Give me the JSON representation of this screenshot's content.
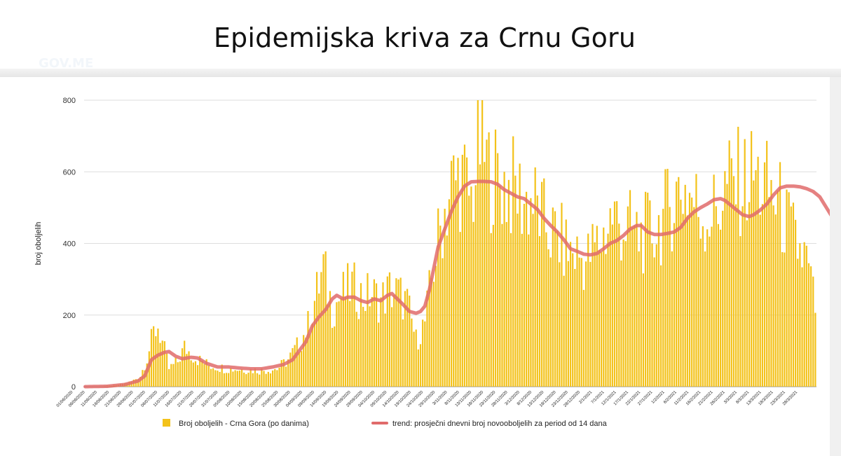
{
  "slide": {
    "title": "Epidemijska kriva za Crnu Goru",
    "watermark": "GOV.ME"
  },
  "colors": {
    "bar": "#f3c21a",
    "trend": "#e06b6b",
    "grid": "#dddddd",
    "axis": "#888888",
    "text": "#333333"
  },
  "chart_data": {
    "type": "bar",
    "title": "",
    "ylabel": "broj oboljelih",
    "xlabel": "",
    "ylim": [
      0,
      800
    ],
    "yticks": [
      0,
      200,
      400,
      600,
      800
    ],
    "grid": true,
    "legend_position": "bottom",
    "x_tick_labels": [
      "01/06/2020",
      "06/06/2020",
      "11/06/2020",
      "16/06/2020",
      "21/06/2020",
      "26/06/2020",
      "01/07/2020",
      "06/07/2020",
      "11/07/2020",
      "16/07/2020",
      "21/07/2020",
      "26/07/2020",
      "31/07/2020",
      "05/08/2020",
      "10/08/2020",
      "15/08/2020",
      "20/08/2020",
      "25/08/2020",
      "30/08/2020",
      "04/09/2020",
      "09/09/2020",
      "14/09/2020",
      "19/09/2020",
      "24/09/2020",
      "29/09/2020",
      "04/10/2020",
      "09/10/2020",
      "14/10/2020",
      "19/10/2020",
      "24/10/2020",
      "29/10/2020",
      "3/11/2020",
      "8/11/2020",
      "13/11/2020",
      "18/11/2020",
      "23/11/2020",
      "28/11/2020",
      "3/12/2020",
      "8/12/2020",
      "13/12/2020",
      "18/12/2020",
      "23/12/2020",
      "28/12/2020",
      "2/1/2021",
      "7/1/2021",
      "12/1/2021",
      "17/1/2021",
      "22/1/2021",
      "27/1/2021",
      "1/2/2021",
      "6/2/2021",
      "11/2/2021",
      "16/2/2021",
      "21/2/2021",
      "26/2/2021",
      "3/3/2021",
      "8/3/2021",
      "13/3/2021",
      "18/3/2021",
      "23/3/2021",
      "28/3/2021"
    ],
    "bar_anchors": [
      [
        0,
        0
      ],
      [
        7,
        1
      ],
      [
        14,
        4
      ],
      [
        21,
        14
      ],
      [
        25,
        30
      ],
      [
        28,
        80
      ],
      [
        31,
        150
      ],
      [
        33,
        170
      ],
      [
        36,
        100
      ],
      [
        38,
        50
      ],
      [
        42,
        70
      ],
      [
        45,
        110
      ],
      [
        50,
        80
      ],
      [
        56,
        60
      ],
      [
        64,
        50
      ],
      [
        72,
        48
      ],
      [
        80,
        45
      ],
      [
        87,
        50
      ],
      [
        92,
        75
      ],
      [
        97,
        120
      ],
      [
        101,
        170
      ],
      [
        104,
        240
      ],
      [
        108,
        330
      ],
      [
        112,
        220
      ],
      [
        117,
        260
      ],
      [
        121,
        280
      ],
      [
        126,
        250
      ],
      [
        130,
        260
      ],
      [
        134,
        240
      ],
      [
        138,
        270
      ],
      [
        142,
        260
      ],
      [
        146,
        230
      ],
      [
        150,
        130
      ],
      [
        154,
        180
      ],
      [
        158,
        340
      ],
      [
        162,
        470
      ],
      [
        166,
        560
      ],
      [
        170,
        590
      ],
      [
        175,
        520
      ],
      [
        179,
        680
      ],
      [
        183,
        600
      ],
      [
        187,
        580
      ],
      [
        191,
        560
      ],
      [
        195,
        550
      ],
      [
        199,
        520
      ],
      [
        203,
        520
      ],
      [
        207,
        470
      ],
      [
        211,
        430
      ],
      [
        215,
        410
      ],
      [
        219,
        380
      ],
      [
        223,
        370
      ],
      [
        227,
        350
      ],
      [
        231,
        390
      ],
      [
        235,
        420
      ],
      [
        239,
        480
      ],
      [
        243,
        450
      ],
      [
        247,
        440
      ],
      [
        251,
        420
      ],
      [
        255,
        430
      ],
      [
        259,
        440
      ],
      [
        263,
        480
      ],
      [
        267,
        530
      ],
      [
        271,
        560
      ],
      [
        275,
        530
      ],
      [
        279,
        480
      ],
      [
        283,
        480
      ],
      [
        287,
        500
      ],
      [
        291,
        560
      ],
      [
        295,
        570
      ],
      [
        299,
        570
      ],
      [
        303,
        590
      ],
      [
        307,
        560
      ],
      [
        311,
        540
      ],
      [
        315,
        500
      ],
      [
        319,
        440
      ],
      [
        323,
        390
      ],
      [
        327,
        350
      ],
      [
        331,
        220
      ]
    ],
    "bar_day_count": 332,
    "trend_anchors": [
      [
        0,
        0
      ],
      [
        10,
        1
      ],
      [
        18,
        6
      ],
      [
        24,
        16
      ],
      [
        27,
        30
      ],
      [
        30,
        75
      ],
      [
        33,
        88
      ],
      [
        36,
        96
      ],
      [
        38,
        98
      ],
      [
        41,
        85
      ],
      [
        44,
        78
      ],
      [
        48,
        82
      ],
      [
        51,
        80
      ],
      [
        55,
        65
      ],
      [
        60,
        55
      ],
      [
        65,
        55
      ],
      [
        70,
        52
      ],
      [
        75,
        50
      ],
      [
        80,
        50
      ],
      [
        85,
        55
      ],
      [
        90,
        62
      ],
      [
        94,
        75
      ],
      [
        97,
        100
      ],
      [
        100,
        125
      ],
      [
        103,
        170
      ],
      [
        106,
        195
      ],
      [
        109,
        215
      ],
      [
        112,
        245
      ],
      [
        114,
        255
      ],
      [
        117,
        245
      ],
      [
        119,
        250
      ],
      [
        122,
        250
      ],
      [
        125,
        240
      ],
      [
        128,
        235
      ],
      [
        131,
        245
      ],
      [
        134,
        240
      ],
      [
        137,
        255
      ],
      [
        139,
        260
      ],
      [
        141,
        248
      ],
      [
        144,
        230
      ],
      [
        147,
        210
      ],
      [
        150,
        205
      ],
      [
        152,
        210
      ],
      [
        154,
        225
      ],
      [
        156,
        270
      ],
      [
        158,
        330
      ],
      [
        160,
        390
      ],
      [
        163,
        440
      ],
      [
        166,
        490
      ],
      [
        169,
        530
      ],
      [
        172,
        560
      ],
      [
        175,
        572
      ],
      [
        178,
        573
      ],
      [
        181,
        573
      ],
      [
        184,
        572
      ],
      [
        187,
        565
      ],
      [
        190,
        550
      ],
      [
        193,
        540
      ],
      [
        196,
        530
      ],
      [
        199,
        525
      ],
      [
        202,
        510
      ],
      [
        205,
        495
      ],
      [
        208,
        470
      ],
      [
        211,
        450
      ],
      [
        214,
        432
      ],
      [
        217,
        410
      ],
      [
        220,
        385
      ],
      [
        223,
        378
      ],
      [
        226,
        370
      ],
      [
        229,
        368
      ],
      [
        232,
        372
      ],
      [
        235,
        385
      ],
      [
        238,
        400
      ],
      [
        241,
        408
      ],
      [
        244,
        422
      ],
      [
        247,
        440
      ],
      [
        250,
        450
      ],
      [
        252,
        450
      ],
      [
        255,
        432
      ],
      [
        258,
        425
      ],
      [
        261,
        425
      ],
      [
        264,
        428
      ],
      [
        267,
        432
      ],
      [
        270,
        445
      ],
      [
        273,
        470
      ],
      [
        276,
        488
      ],
      [
        279,
        500
      ],
      [
        282,
        510
      ],
      [
        285,
        522
      ],
      [
        288,
        525
      ],
      [
        290,
        520
      ],
      [
        293,
        505
      ],
      [
        296,
        490
      ],
      [
        298,
        480
      ],
      [
        301,
        475
      ],
      [
        303,
        480
      ],
      [
        306,
        493
      ],
      [
        309,
        510
      ],
      [
        312,
        535
      ],
      [
        315,
        555
      ],
      [
        318,
        560
      ],
      [
        321,
        560
      ],
      [
        324,
        558
      ],
      [
        327,
        553
      ],
      [
        330,
        545
      ],
      [
        333,
        530
      ],
      [
        336,
        500
      ],
      [
        339,
        470
      ],
      [
        342,
        440
      ],
      [
        345,
        410
      ],
      [
        347,
        390
      ],
      [
        349,
        375
      ]
    ],
    "trend_day_count": 350,
    "series": [
      {
        "name": "Broj oboljelih - Crna Gora (po danima)",
        "type": "bar",
        "color": "#f3c21a"
      },
      {
        "name": "trend: prosječni dnevni broj novooboljelih za period od 14 dana",
        "type": "line",
        "color": "#e06b6b"
      }
    ]
  }
}
